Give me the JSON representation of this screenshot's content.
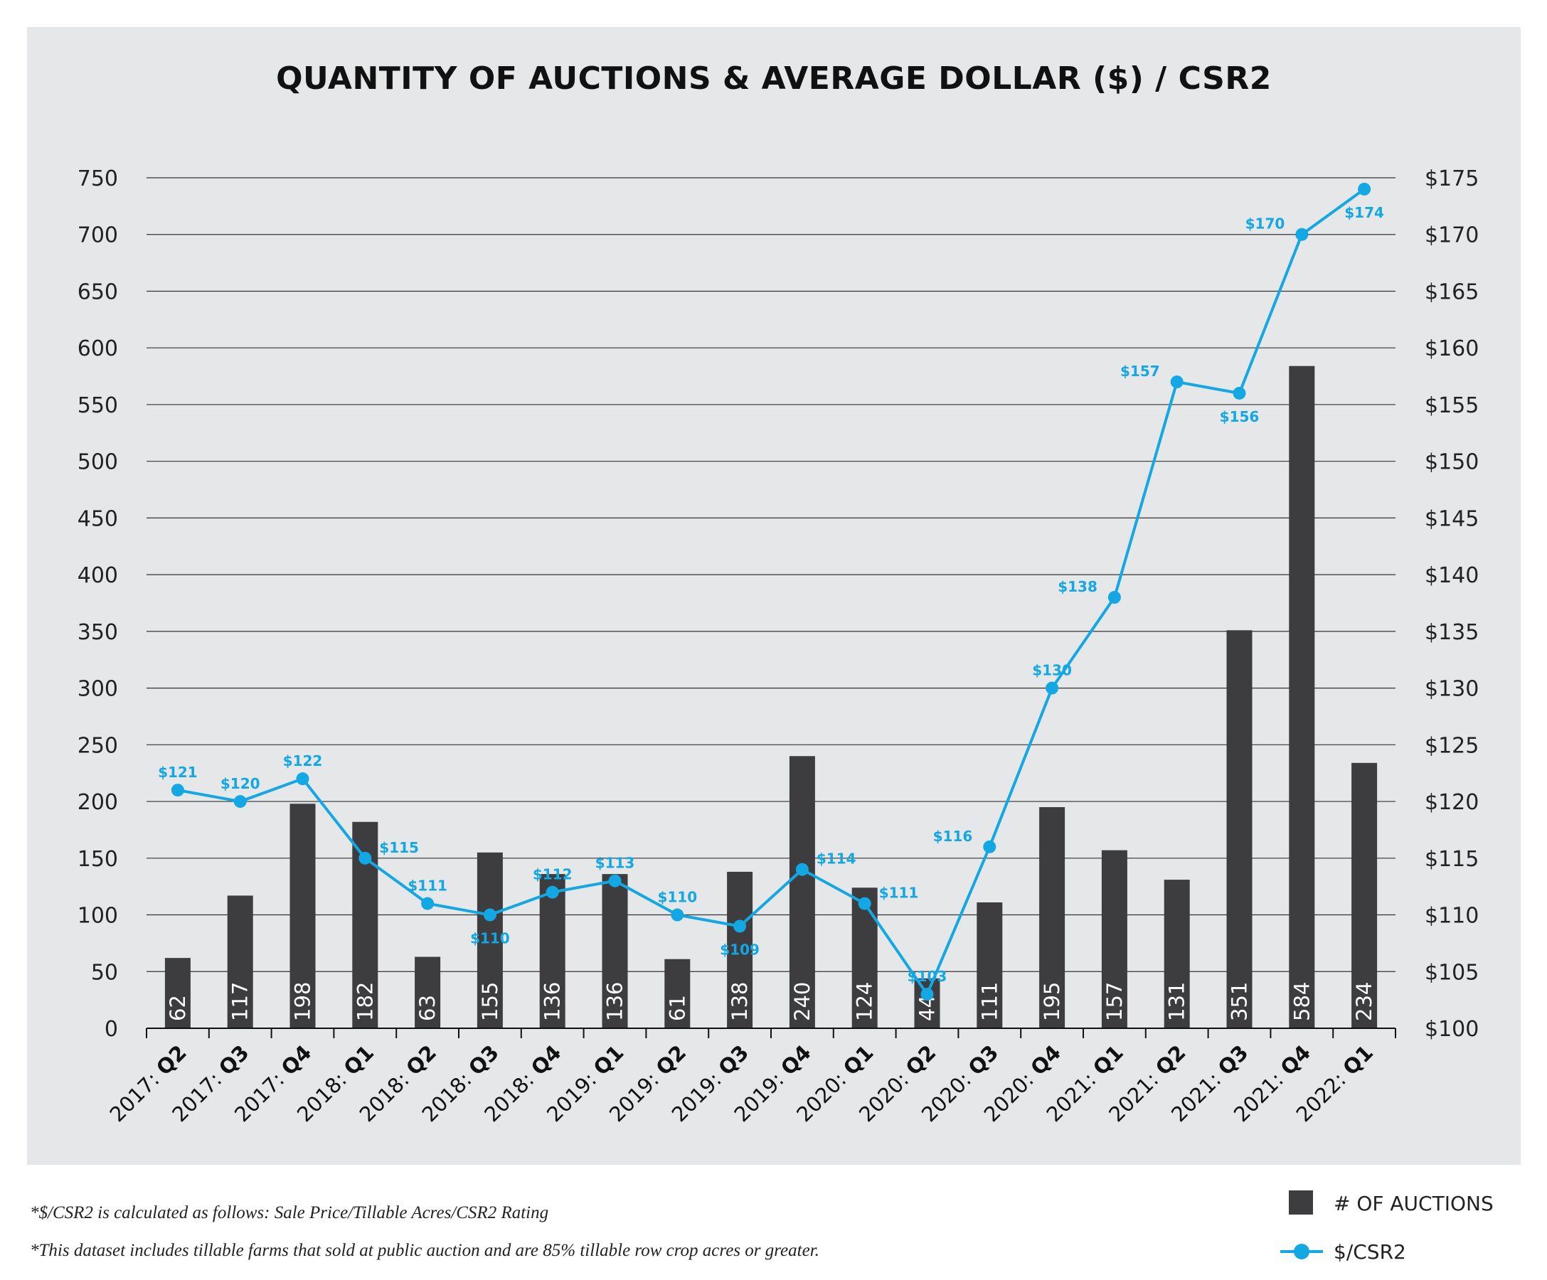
{
  "chart_data": {
    "type": "bar+line",
    "title": "QUANTITY OF AUCTIONS & AVERAGE DOLLAR ($) / CSR2",
    "categories": [
      {
        "year": "2017:",
        "q": "Q2"
      },
      {
        "year": "2017:",
        "q": "Q3"
      },
      {
        "year": "2017:",
        "q": "Q4"
      },
      {
        "year": "2018:",
        "q": "Q1"
      },
      {
        "year": "2018:",
        "q": "Q2"
      },
      {
        "year": "2018:",
        "q": "Q3"
      },
      {
        "year": "2018:",
        "q": "Q4"
      },
      {
        "year": "2019:",
        "q": "Q1"
      },
      {
        "year": "2019:",
        "q": "Q2"
      },
      {
        "year": "2019:",
        "q": "Q3"
      },
      {
        "year": "2019:",
        "q": "Q4"
      },
      {
        "year": "2020:",
        "q": "Q1"
      },
      {
        "year": "2020:",
        "q": "Q2"
      },
      {
        "year": "2020:",
        "q": "Q3"
      },
      {
        "year": "2020:",
        "q": "Q4"
      },
      {
        "year": "2021:",
        "q": "Q1"
      },
      {
        "year": "2021:",
        "q": "Q2"
      },
      {
        "year": "2021:",
        "q": "Q3"
      },
      {
        "year": "2021:",
        "q": "Q4"
      },
      {
        "year": "2022:",
        "q": "Q1"
      }
    ],
    "series": [
      {
        "name": "# OF AUCTIONS",
        "type": "bar",
        "axis": "left",
        "color": "#3d3d3f",
        "values": [
          62,
          117,
          198,
          182,
          63,
          155,
          136,
          136,
          61,
          138,
          240,
          124,
          44,
          111,
          195,
          157,
          131,
          351,
          584,
          234
        ]
      },
      {
        "name": "$/CSR2",
        "type": "line",
        "axis": "right",
        "color": "#13a7e3",
        "values": [
          121,
          120,
          122,
          115,
          111,
          110,
          112,
          113,
          110,
          109,
          114,
          111,
          103,
          116,
          130,
          138,
          157,
          156,
          170,
          174
        ],
        "labels": [
          "$121",
          "$120",
          "$122",
          "$115",
          "$111",
          "$110",
          "$112",
          "$113",
          "$110",
          "$109",
          "$114",
          "$111",
          "$103",
          "$116",
          "$130",
          "$138",
          "$157",
          "$156",
          "$170",
          "$174"
        ],
        "label_side": [
          "above",
          "above",
          "above",
          "right",
          "above",
          "below",
          "above",
          "above",
          "above",
          "below",
          "right",
          "right",
          "above",
          "left",
          "above",
          "left",
          "left",
          "below",
          "left",
          "below"
        ]
      }
    ],
    "y_left": {
      "min": 0,
      "max": 750,
      "ticks": [
        0,
        50,
        100,
        150,
        200,
        250,
        300,
        350,
        400,
        450,
        500,
        550,
        600,
        650,
        700,
        750
      ]
    },
    "y_right": {
      "min": 100,
      "max": 175,
      "ticks": [
        "$100",
        "$105",
        "$110",
        "$115",
        "$120",
        "$125",
        "$130",
        "$135",
        "$140",
        "$145",
        "$150",
        "$155",
        "$160",
        "$165",
        "$170",
        "$175"
      ]
    },
    "grid": true,
    "legend": "bottom-right"
  },
  "footnotes": [
    "*$/CSR2 is calculated as follows: Sale Price/Tillable Acres/CSR2 Rating",
    "*This dataset includes tillable farms that sold at public auction and are 85% tillable row crop acres or greater."
  ],
  "legend": {
    "bar_label": "# OF AUCTIONS",
    "line_label": "$/CSR2"
  }
}
